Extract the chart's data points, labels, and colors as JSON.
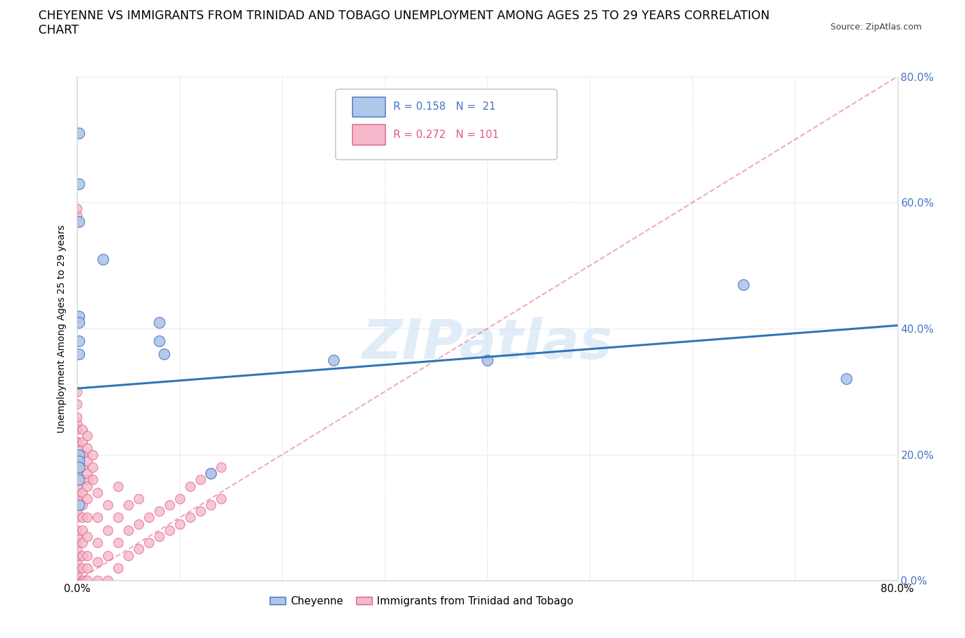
{
  "title": "CHEYENNE VS IMMIGRANTS FROM TRINIDAD AND TOBAGO UNEMPLOYMENT AMONG AGES 25 TO 29 YEARS CORRELATION\nCHART",
  "source": "Source: ZipAtlas.com",
  "ylabel": "Unemployment Among Ages 25 to 29 years",
  "watermark": "ZIPatlas",
  "xlim": [
    0,
    0.8
  ],
  "ylim": [
    0,
    0.8
  ],
  "ytick_labels_right": [
    "0.0%",
    "20.0%",
    "40.0%",
    "60.0%",
    "80.0%"
  ],
  "ytick_positions": [
    0.0,
    0.2,
    0.4,
    0.6,
    0.8
  ],
  "xtick_labels": [
    "0.0%",
    "",
    "",
    "",
    "",
    "",
    "",
    "",
    "80.0%"
  ],
  "xtick_positions": [
    0.0,
    0.1,
    0.2,
    0.3,
    0.4,
    0.5,
    0.6,
    0.7,
    0.8
  ],
  "cheyenne_color": "#aec6e8",
  "immigrant_color": "#f5b8cb",
  "cheyenne_edge": "#4472c4",
  "immigrant_edge": "#e05a7a",
  "trend_line_blue": "#2e75b6",
  "trend_line_pink": "#e05a7a",
  "R_cheyenne": 0.158,
  "N_cheyenne": 21,
  "R_immigrant": 0.272,
  "N_immigrant": 101,
  "cheyenne_x": [
    0.002,
    0.002,
    0.002,
    0.002,
    0.002,
    0.002,
    0.002,
    0.025,
    0.08,
    0.08,
    0.085,
    0.13,
    0.25,
    0.4,
    0.65,
    0.75,
    0.002,
    0.002,
    0.002,
    0.002,
    0.002
  ],
  "cheyenne_y": [
    0.71,
    0.63,
    0.57,
    0.42,
    0.41,
    0.38,
    0.36,
    0.51,
    0.41,
    0.38,
    0.36,
    0.17,
    0.35,
    0.35,
    0.47,
    0.32,
    0.2,
    0.19,
    0.18,
    0.16,
    0.12
  ],
  "blue_trend_x": [
    0.0,
    0.8
  ],
  "blue_trend_y": [
    0.305,
    0.405
  ],
  "pink_trend_x": [
    0.0,
    0.8
  ],
  "pink_trend_y": [
    0.0,
    0.8
  ],
  "imm_cluster_x": [
    0.0,
    0.0,
    0.0,
    0.0,
    0.0,
    0.0,
    0.0,
    0.0,
    0.0,
    0.0,
    0.0,
    0.0,
    0.0,
    0.0,
    0.0,
    0.0,
    0.0,
    0.0,
    0.0,
    0.0,
    0.0,
    0.0,
    0.0,
    0.0,
    0.0,
    0.0,
    0.0,
    0.0,
    0.0,
    0.0,
    0.005,
    0.005,
    0.005,
    0.005,
    0.005,
    0.005,
    0.005,
    0.005,
    0.01,
    0.01,
    0.01,
    0.01,
    0.01,
    0.01,
    0.01,
    0.02,
    0.02,
    0.02,
    0.02,
    0.02,
    0.03,
    0.03,
    0.03,
    0.03,
    0.04,
    0.04,
    0.04,
    0.04,
    0.05,
    0.05,
    0.05,
    0.06,
    0.06,
    0.06,
    0.07,
    0.07,
    0.08,
    0.08,
    0.09,
    0.09,
    0.1,
    0.1,
    0.11,
    0.11,
    0.12,
    0.12,
    0.13,
    0.13,
    0.14,
    0.14,
    0.0,
    0.0,
    0.0,
    0.0,
    0.0,
    0.0,
    0.0,
    0.0,
    0.0,
    0.005,
    0.005,
    0.005,
    0.005,
    0.01,
    0.01,
    0.01,
    0.01,
    0.01,
    0.015,
    0.015,
    0.015
  ],
  "imm_cluster_y": [
    0.0,
    0.0,
    0.0,
    0.0,
    0.0,
    0.01,
    0.01,
    0.02,
    0.02,
    0.03,
    0.04,
    0.04,
    0.05,
    0.06,
    0.07,
    0.08,
    0.1,
    0.11,
    0.12,
    0.13,
    0.14,
    0.15,
    0.16,
    0.17,
    0.18,
    0.19,
    0.2,
    0.21,
    0.22,
    0.25,
    0.0,
    0.02,
    0.04,
    0.06,
    0.08,
    0.1,
    0.12,
    0.14,
    0.0,
    0.02,
    0.04,
    0.07,
    0.1,
    0.13,
    0.16,
    0.0,
    0.03,
    0.06,
    0.1,
    0.14,
    0.0,
    0.04,
    0.08,
    0.12,
    0.02,
    0.06,
    0.1,
    0.15,
    0.04,
    0.08,
    0.12,
    0.05,
    0.09,
    0.13,
    0.06,
    0.1,
    0.07,
    0.11,
    0.08,
    0.12,
    0.09,
    0.13,
    0.1,
    0.15,
    0.11,
    0.16,
    0.12,
    0.17,
    0.13,
    0.18,
    0.57,
    0.58,
    0.59,
    0.2,
    0.22,
    0.24,
    0.26,
    0.28,
    0.3,
    0.18,
    0.2,
    0.22,
    0.24,
    0.15,
    0.17,
    0.19,
    0.21,
    0.23,
    0.16,
    0.18,
    0.2
  ]
}
